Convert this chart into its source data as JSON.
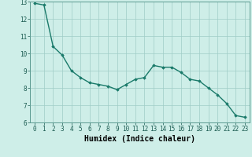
{
  "x": [
    0,
    1,
    2,
    3,
    4,
    5,
    6,
    7,
    8,
    9,
    10,
    11,
    12,
    13,
    14,
    15,
    16,
    17,
    18,
    19,
    20,
    21,
    22,
    23
  ],
  "y": [
    12.9,
    12.8,
    10.4,
    9.9,
    9.0,
    8.6,
    8.3,
    8.2,
    8.1,
    7.9,
    8.2,
    8.5,
    8.6,
    9.3,
    9.2,
    9.2,
    8.9,
    8.5,
    8.4,
    8.0,
    7.6,
    7.1,
    6.4,
    6.3
  ],
  "line_color": "#1a7a6a",
  "marker": "D",
  "marker_size": 1.8,
  "bg_color": "#ceeee8",
  "grid_color": "#a0ccc6",
  "xlabel": "Humidex (Indice chaleur)",
  "xlabel_fontsize": 7,
  "tick_fontsize": 5.5,
  "ylim": [
    6,
    13
  ],
  "xlim": [
    -0.5,
    23.5
  ],
  "yticks": [
    6,
    7,
    8,
    9,
    10,
    11,
    12,
    13
  ],
  "xticks": [
    0,
    1,
    2,
    3,
    4,
    5,
    6,
    7,
    8,
    9,
    10,
    11,
    12,
    13,
    14,
    15,
    16,
    17,
    18,
    19,
    20,
    21,
    22,
    23
  ],
  "linewidth": 1.0
}
